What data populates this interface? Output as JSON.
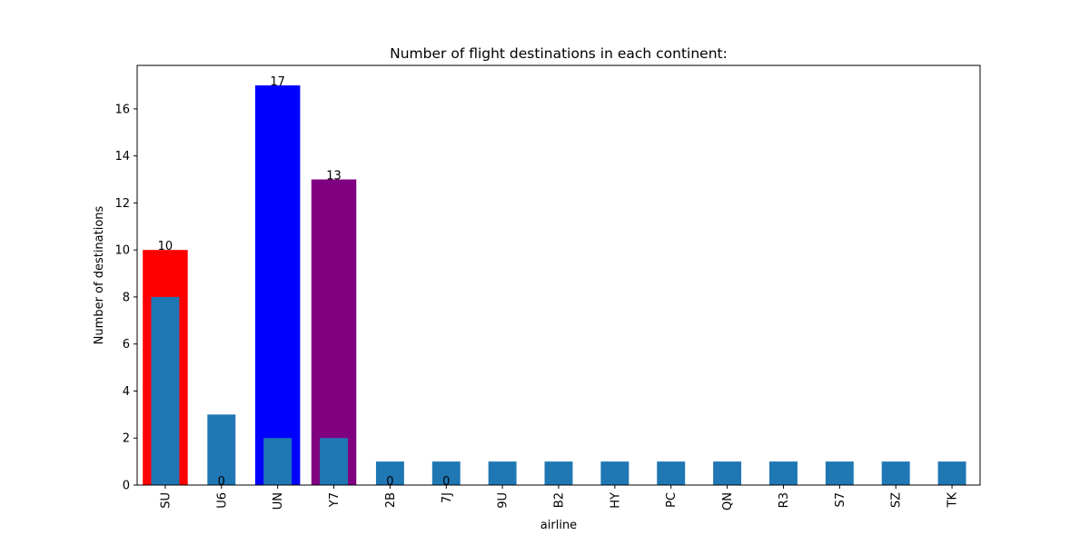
{
  "chart_data": {
    "type": "bar",
    "title": "Number of flight destinations in each continent:",
    "xlabel": "airline",
    "ylabel": "Number of destinations",
    "categories": [
      "SU",
      "U6",
      "UN",
      "Y7",
      "2B",
      "7J",
      "9U",
      "B2",
      "HY",
      "PC",
      "QN",
      "R3",
      "S7",
      "SZ",
      "TK"
    ],
    "series": [
      {
        "values": [
          10,
          0,
          17,
          13,
          0,
          0,
          null,
          null,
          null,
          null,
          null,
          null,
          null,
          null,
          null
        ],
        "colors": [
          "red",
          null,
          "blue",
          "purple",
          null,
          null,
          null,
          null,
          null,
          null,
          null,
          null,
          null,
          null,
          null
        ],
        "labeled": true,
        "width": 0.8
      },
      {
        "values": [
          8,
          3,
          2,
          2,
          1,
          1,
          1,
          1,
          1,
          1,
          1,
          1,
          1,
          1,
          1
        ],
        "color": "#1f77b4",
        "labeled": false,
        "width": 0.5
      }
    ],
    "ylim": [
      0,
      17.85
    ],
    "yticks": [
      0,
      2,
      4,
      6,
      8,
      10,
      12,
      14,
      16
    ]
  }
}
